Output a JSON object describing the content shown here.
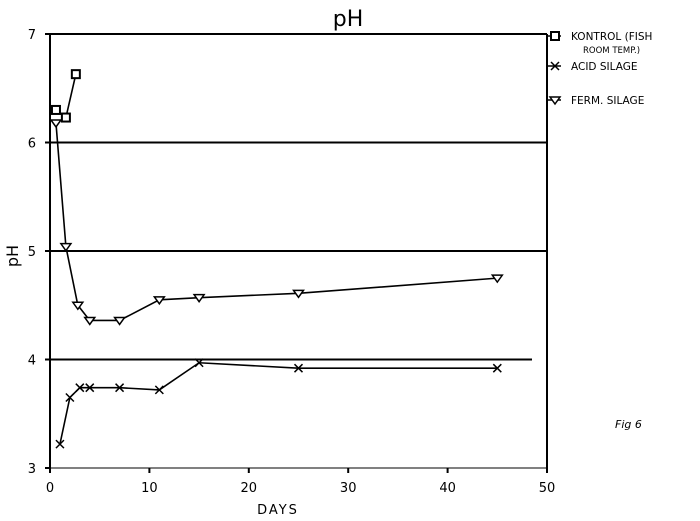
{
  "chart_data": {
    "type": "line",
    "title": "pH",
    "xlabel": "DAYS",
    "ylabel": "pH",
    "xlim": [
      0,
      50
    ],
    "ylim": [
      3,
      7
    ],
    "xticks": [
      "0",
      "10",
      "20",
      "30",
      "40",
      "50"
    ],
    "yticks": [
      "3",
      "4",
      "5",
      "6",
      "7"
    ],
    "grid": "horizontal at 4, 5, 6",
    "legend_position": "right",
    "series": [
      {
        "name": "KONTROL (FISH ROOM TEMP.)",
        "marker": "square",
        "x": [
          0.6,
          1.6,
          2.6
        ],
        "y": [
          6.3,
          6.23,
          6.63
        ]
      },
      {
        "name": "ACID SILAGE",
        "marker": "x",
        "x": [
          1,
          2,
          3,
          4,
          7,
          11,
          15,
          25,
          45
        ],
        "y": [
          3.22,
          3.65,
          3.74,
          3.74,
          3.74,
          3.72,
          3.97,
          3.92,
          3.92
        ]
      },
      {
        "name": "FERM. SILAGE",
        "marker": "triangle-down",
        "x": [
          0.6,
          1.6,
          2.8,
          4,
          7,
          11,
          15,
          25,
          45
        ],
        "y": [
          6.18,
          5.04,
          4.5,
          4.36,
          4.36,
          4.55,
          4.57,
          4.61,
          4.75
        ]
      }
    ],
    "annotation": "Fig 6"
  }
}
